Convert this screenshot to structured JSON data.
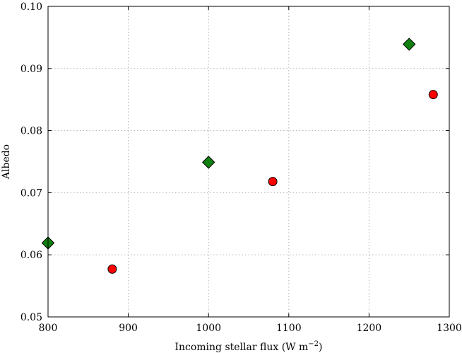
{
  "chart_data": {
    "type": "scatter",
    "title": "",
    "xlabel": "Incoming stellar flux (W m",
    "xlabel_unit_exponent": "−2",
    "xlabel_close": ")",
    "ylabel": "Albedo",
    "xlim": [
      800,
      1300
    ],
    "ylim": [
      0.05,
      0.1
    ],
    "xticks": [
      800,
      900,
      1000,
      1100,
      1200,
      1300
    ],
    "xtick_labels": [
      "800",
      "900",
      "1000",
      "1100",
      "1200",
      "1300"
    ],
    "yticks": [
      0.05,
      0.06,
      0.07,
      0.08,
      0.09,
      0.1
    ],
    "ytick_labels": [
      "0.05",
      "0.06",
      "0.07",
      "0.08",
      "0.09",
      "0.10"
    ],
    "grid": true,
    "series": [
      {
        "marker": "diamond",
        "color": "#108010",
        "points": [
          {
            "x": 800,
            "y": 0.0619
          },
          {
            "x": 1000,
            "y": 0.0749
          },
          {
            "x": 1250,
            "y": 0.0939
          }
        ]
      },
      {
        "marker": "circle",
        "color": "#ff0000",
        "points": [
          {
            "x": 880,
            "y": 0.0577
          },
          {
            "x": 1080,
            "y": 0.0718
          },
          {
            "x": 1280,
            "y": 0.0858
          }
        ]
      }
    ]
  }
}
